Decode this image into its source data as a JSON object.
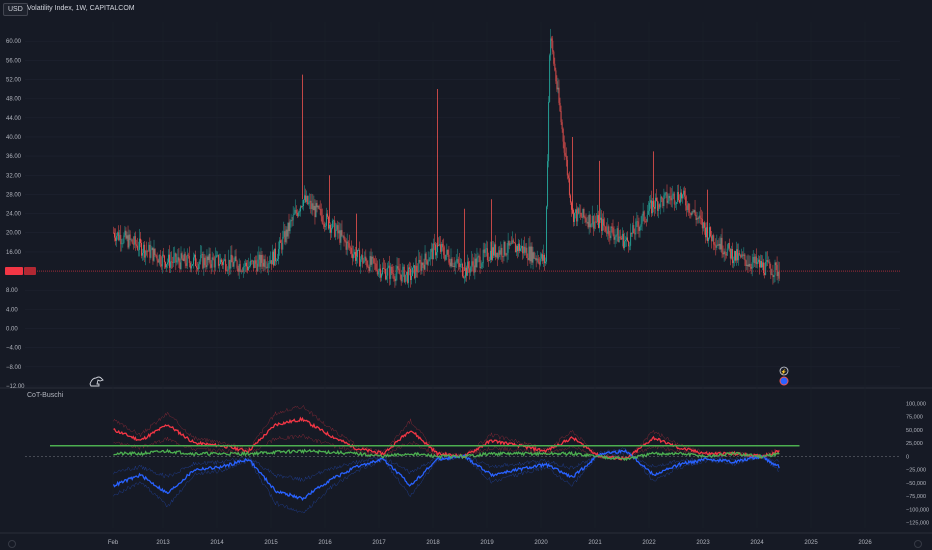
{
  "header": {
    "currency": "USD",
    "title": "Volatility Index, 1W, CAPITALCOM"
  },
  "indicator": {
    "title": "CoT-Buschi"
  },
  "colors": {
    "background": "#161a25",
    "up": "#26a69a",
    "down": "#ef5350",
    "price_line": "#f23645",
    "cot_red": "#f23645",
    "cot_blue": "#2962ff",
    "cot_green": "#4caf50",
    "zero_line": "#787b86"
  },
  "price_axis": {
    "ticks": [
      "60.00",
      "56.00",
      "52.00",
      "48.00",
      "44.00",
      "40.00",
      "36.00",
      "32.00",
      "28.00",
      "24.00",
      "20.00",
      "16.00",
      "8.00",
      "4.00",
      "0.00",
      "−4.00",
      "−8.00",
      "−12.00"
    ],
    "current_label": "",
    "current_label2": ""
  },
  "indicator_axis": {
    "ticks": [
      "100,000",
      "75,000",
      "50,000",
      "25,000",
      "0",
      "−25,000",
      "−50,000",
      "−75,000",
      "−100,000",
      "−125,000"
    ]
  },
  "time_axis": {
    "ticks": [
      "Feb",
      "2013",
      "2014",
      "2015",
      "2016",
      "2017",
      "2018",
      "2019",
      "2020",
      "2021",
      "2022",
      "2023",
      "2024",
      "2025",
      "2026"
    ]
  },
  "icons": {
    "dino": "dino-icon",
    "event_flag": "lightning-icon",
    "us_flag": "us-flag-icon"
  },
  "chart_data": [
    {
      "type": "candlestick",
      "title": "Volatility Index, 1W, CAPITALCOM",
      "x": [
        "2012-02",
        "2012-08",
        "2013-02",
        "2013-08",
        "2014-02",
        "2014-08",
        "2015-02",
        "2015-08",
        "2016-02",
        "2016-08",
        "2017-02",
        "2017-08",
        "2018-02",
        "2018-08",
        "2019-02",
        "2019-08",
        "2020-02",
        "2020-03",
        "2020-08",
        "2021-02",
        "2021-08",
        "2022-02",
        "2022-08",
        "2023-02",
        "2023-08",
        "2024-02",
        "2024-06"
      ],
      "close": [
        20,
        17,
        14,
        14,
        14,
        13,
        15,
        27,
        22,
        15,
        12,
        11,
        17,
        12,
        16,
        17,
        14,
        62,
        24,
        22,
        18,
        26,
        28,
        20,
        15,
        13,
        12
      ],
      "high": [
        24,
        22,
        20,
        18,
        21,
        18,
        23,
        53,
        32,
        24,
        14,
        16,
        50,
        25,
        27,
        25,
        18,
        68,
        40,
        35,
        26,
        37,
        34,
        29,
        22,
        18,
        20
      ],
      "ylim": [
        -12,
        64
      ],
      "current_value": 12
    },
    {
      "type": "line",
      "title": "CoT-Buschi",
      "x": [
        "2012-02",
        "2012-08",
        "2013-02",
        "2013-08",
        "2014-02",
        "2014-08",
        "2015-02",
        "2015-08",
        "2016-02",
        "2016-08",
        "2017-02",
        "2017-08",
        "2018-02",
        "2018-08",
        "2019-02",
        "2019-08",
        "2020-02",
        "2020-08",
        "2021-02",
        "2021-08",
        "2022-02",
        "2022-08",
        "2023-02",
        "2023-08",
        "2024-02",
        "2024-06"
      ],
      "series": [
        {
          "values": [
            50,
            30,
            60,
            25,
            20,
            10,
            60,
            70,
            40,
            15,
            5,
            50,
            5,
            0,
            30,
            20,
            10,
            35,
            0,
            -5,
            35,
            15,
            5,
            5,
            0,
            10
          ]
        },
        {
          "values": [
            -55,
            -35,
            -70,
            -25,
            -20,
            -5,
            -65,
            -80,
            -45,
            -20,
            -5,
            -55,
            -5,
            0,
            -35,
            -25,
            -15,
            -40,
            5,
            10,
            -35,
            -15,
            -5,
            -10,
            0,
            -20
          ]
        },
        {
          "values": [
            5,
            5,
            10,
            5,
            5,
            5,
            8,
            10,
            8,
            5,
            0,
            5,
            0,
            0,
            5,
            5,
            5,
            5,
            0,
            -5,
            5,
            5,
            0,
            5,
            0,
            5
          ]
        },
        {
          "values": [
            20,
            20,
            20,
            20,
            20,
            20,
            20,
            20,
            20,
            20,
            20,
            20,
            20,
            20,
            20,
            20,
            20,
            20,
            20,
            20,
            20,
            20,
            20,
            20,
            20,
            20
          ]
        }
      ],
      "ylim": [
        -135000,
        110000
      ]
    }
  ]
}
